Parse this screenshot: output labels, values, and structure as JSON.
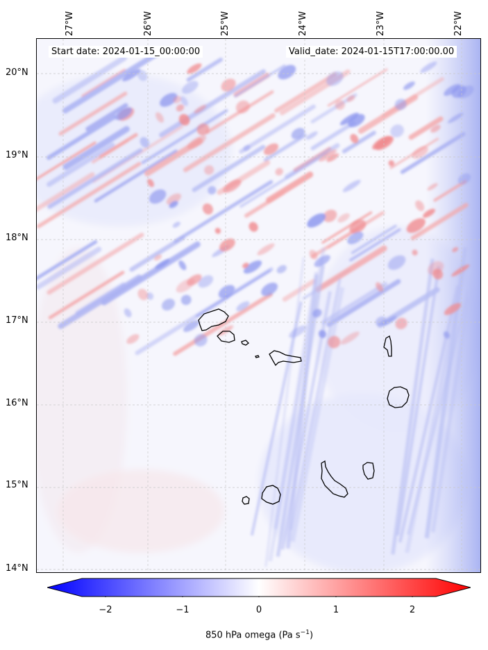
{
  "header": {
    "start_date": "Start date: 2024-01-15_00:00:00",
    "valid_date": "Valid_date: 2024-01-15T17:00:00.00"
  },
  "map": {
    "lon_labels": [
      "27°W",
      "26°W",
      "25°W",
      "24°W",
      "23°W",
      "22°W"
    ],
    "lat_labels": [
      "20°N",
      "19°N",
      "18°N",
      "17°N",
      "16°N",
      "15°N",
      "14°N"
    ],
    "islands": [
      "santo-antao",
      "sao-vicente",
      "santa-luzia",
      "sao-nicolau",
      "sal",
      "boa-vista",
      "brava",
      "fogo",
      "santiago",
      "maio"
    ]
  },
  "colorbar": {
    "ticks": [
      "−2",
      "−1",
      "0",
      "1",
      "2"
    ],
    "label_prefix": "850 hPa omega (Pa s",
    "label_exp": "−1",
    "label_suffix": ")",
    "colors": {
      "negative": "#0000ff",
      "zero": "#ffffff",
      "positive": "#ff0000"
    }
  }
}
